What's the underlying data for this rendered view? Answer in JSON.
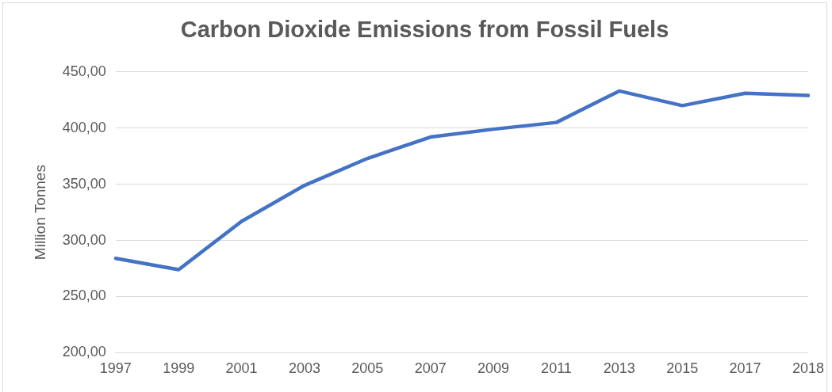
{
  "chart_data": {
    "type": "line",
    "title": "Carbon Dioxide Emissions from Fossil Fuels",
    "ylabel": "Million Tonnes",
    "categories": [
      "1997",
      "1999",
      "2001",
      "2003",
      "2005",
      "2007",
      "2009",
      "2011",
      "2013",
      "2015",
      "2017",
      "2018"
    ],
    "series": [
      {
        "color": "#4472c4",
        "values": [
          284,
          274,
          317,
          349,
          373,
          392,
          399,
          405,
          433,
          420,
          431,
          429
        ]
      }
    ],
    "ylim": [
      200,
      450
    ],
    "yticks": [
      {
        "value": 200,
        "label": "200,00"
      },
      {
        "value": 250,
        "label": "250,00"
      },
      {
        "value": 300,
        "label": "300,00"
      },
      {
        "value": 350,
        "label": "350,00"
      },
      {
        "value": 400,
        "label": "400,00"
      },
      {
        "value": 450,
        "label": "450,00"
      }
    ],
    "grid": "y",
    "legend": false,
    "marker": "none",
    "line_style": "solid"
  }
}
